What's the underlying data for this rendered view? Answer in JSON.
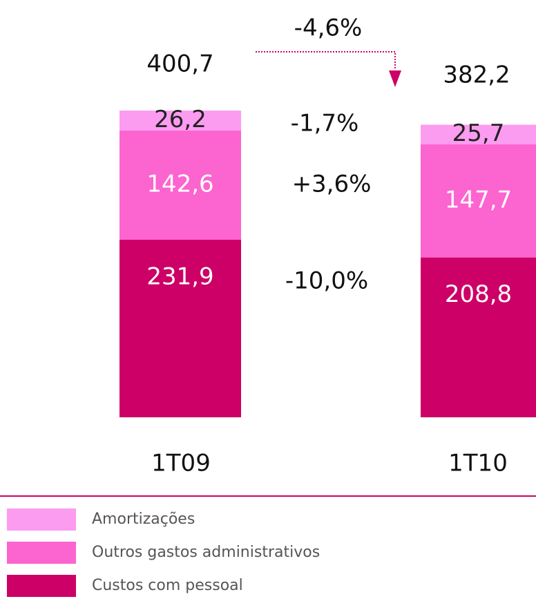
{
  "chart_data": {
    "type": "stacked_bar",
    "categories": [
      "1T09",
      "1T10"
    ],
    "series": [
      {
        "name": "Custos com pessoal",
        "color": "#cc0066",
        "values": [
          231.9,
          208.8
        ],
        "value_labels": [
          "231,9",
          "208,8"
        ]
      },
      {
        "name": "Outros gastos administrativos",
        "color": "#fc64d0",
        "values": [
          142.6,
          147.7
        ],
        "value_labels": [
          "142,6",
          "147,7"
        ]
      },
      {
        "name": "Amortizações",
        "color": "#fc9cf0",
        "values": [
          26.2,
          25.7
        ],
        "value_labels": [
          "26,2",
          "25,7"
        ]
      }
    ],
    "totals": [
      400.7,
      382.2
    ],
    "total_labels": [
      "400,7",
      "382,2"
    ],
    "annotations": [
      "-4,6%",
      "-1,7%",
      "+3,6%",
      "-10,0%"
    ]
  }
}
